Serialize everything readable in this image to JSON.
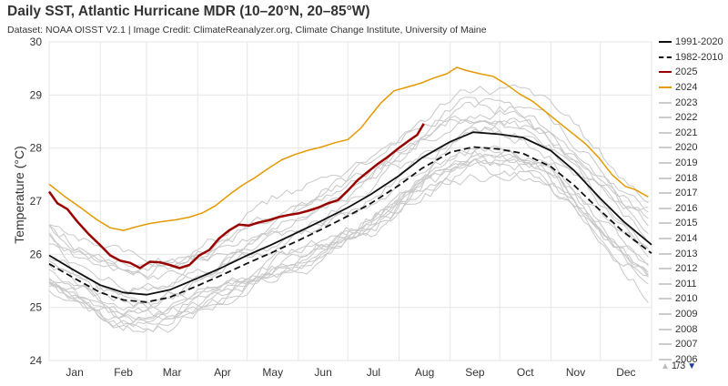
{
  "chart_data": {
    "type": "line",
    "title": "Daily SST, Atlantic Hurricane MDR (10–20°N, 20–85°W)",
    "subtitle": "Dataset: NOAA OISST V2.1 | Image Credit: ClimateReanalyzer.org, Climate Change Institute, University of Maine",
    "xlabel": "",
    "ylabel": "Temperature (°C)",
    "x_categories": [
      "Jan",
      "Feb",
      "Mar",
      "Apr",
      "May",
      "Jun",
      "Jul",
      "Aug",
      "Sep",
      "Oct",
      "Nov",
      "Dec"
    ],
    "x_unit": "day of year",
    "xlim": [
      1,
      366
    ],
    "ylim": [
      24,
      30
    ],
    "yticks": [
      24,
      25,
      26,
      27,
      28,
      29,
      30
    ],
    "grid": true,
    "legend_position": "right",
    "series": [
      {
        "name": "1991-2020",
        "color": "#111111",
        "style": "solid",
        "points": [
          [
            1,
            25.98
          ],
          [
            15,
            25.72
          ],
          [
            32,
            25.42
          ],
          [
            46,
            25.28
          ],
          [
            60,
            25.24
          ],
          [
            74,
            25.33
          ],
          [
            91,
            25.55
          ],
          [
            105,
            25.74
          ],
          [
            121,
            25.98
          ],
          [
            135,
            26.17
          ],
          [
            152,
            26.42
          ],
          [
            166,
            26.63
          ],
          [
            182,
            26.88
          ],
          [
            196,
            27.13
          ],
          [
            213,
            27.48
          ],
          [
            227,
            27.82
          ],
          [
            244,
            28.12
          ],
          [
            258,
            28.3
          ],
          [
            274,
            28.26
          ],
          [
            288,
            28.2
          ],
          [
            305,
            27.95
          ],
          [
            319,
            27.58
          ],
          [
            335,
            27.05
          ],
          [
            349,
            26.62
          ],
          [
            366,
            26.18
          ]
        ]
      },
      {
        "name": "1982-2010",
        "color": "#111111",
        "style": "dashed",
        "points": [
          [
            1,
            25.82
          ],
          [
            15,
            25.57
          ],
          [
            32,
            25.28
          ],
          [
            46,
            25.14
          ],
          [
            60,
            25.1
          ],
          [
            74,
            25.19
          ],
          [
            91,
            25.41
          ],
          [
            105,
            25.6
          ],
          [
            121,
            25.83
          ],
          [
            135,
            26.02
          ],
          [
            152,
            26.26
          ],
          [
            166,
            26.47
          ],
          [
            182,
            26.72
          ],
          [
            196,
            26.96
          ],
          [
            213,
            27.3
          ],
          [
            227,
            27.62
          ],
          [
            244,
            27.92
          ],
          [
            258,
            28.02
          ],
          [
            274,
            27.98
          ],
          [
            288,
            27.9
          ],
          [
            305,
            27.65
          ],
          [
            319,
            27.3
          ],
          [
            335,
            26.82
          ],
          [
            349,
            26.42
          ],
          [
            366,
            26.02
          ]
        ]
      },
      {
        "name": "2025",
        "color": "#990000",
        "style": "solid",
        "points": [
          [
            1,
            27.18
          ],
          [
            6,
            26.96
          ],
          [
            12,
            26.85
          ],
          [
            18,
            26.62
          ],
          [
            25,
            26.38
          ],
          [
            32,
            26.17
          ],
          [
            38,
            25.98
          ],
          [
            44,
            25.88
          ],
          [
            50,
            25.84
          ],
          [
            56,
            25.74
          ],
          [
            62,
            25.86
          ],
          [
            68,
            25.85
          ],
          [
            74,
            25.8
          ],
          [
            80,
            25.74
          ],
          [
            86,
            25.8
          ],
          [
            92,
            25.98
          ],
          [
            98,
            26.08
          ],
          [
            104,
            26.3
          ],
          [
            110,
            26.45
          ],
          [
            116,
            26.56
          ],
          [
            122,
            26.54
          ],
          [
            128,
            26.6
          ],
          [
            134,
            26.64
          ],
          [
            140,
            26.7
          ],
          [
            146,
            26.74
          ],
          [
            152,
            26.77
          ],
          [
            158,
            26.82
          ],
          [
            164,
            26.88
          ],
          [
            170,
            26.96
          ],
          [
            176,
            27.02
          ],
          [
            182,
            27.2
          ],
          [
            188,
            27.4
          ],
          [
            194,
            27.55
          ],
          [
            200,
            27.7
          ],
          [
            206,
            27.83
          ],
          [
            212,
            27.98
          ],
          [
            218,
            28.12
          ],
          [
            224,
            28.25
          ],
          [
            228,
            28.46
          ]
        ]
      },
      {
        "name": "2024",
        "color": "#e69900",
        "style": "solid",
        "points": [
          [
            1,
            27.32
          ],
          [
            10,
            27.1
          ],
          [
            20,
            26.88
          ],
          [
            30,
            26.65
          ],
          [
            38,
            26.5
          ],
          [
            46,
            26.45
          ],
          [
            54,
            26.52
          ],
          [
            62,
            26.58
          ],
          [
            70,
            26.62
          ],
          [
            78,
            26.65
          ],
          [
            86,
            26.7
          ],
          [
            94,
            26.78
          ],
          [
            102,
            26.92
          ],
          [
            110,
            27.12
          ],
          [
            118,
            27.3
          ],
          [
            126,
            27.45
          ],
          [
            134,
            27.62
          ],
          [
            142,
            27.78
          ],
          [
            150,
            27.88
          ],
          [
            158,
            27.96
          ],
          [
            166,
            28.02
          ],
          [
            174,
            28.1
          ],
          [
            182,
            28.16
          ],
          [
            190,
            28.38
          ],
          [
            196,
            28.62
          ],
          [
            202,
            28.85
          ],
          [
            210,
            29.08
          ],
          [
            218,
            29.15
          ],
          [
            226,
            29.22
          ],
          [
            234,
            29.32
          ],
          [
            242,
            29.4
          ],
          [
            248,
            29.52
          ],
          [
            254,
            29.46
          ],
          [
            262,
            29.4
          ],
          [
            270,
            29.35
          ],
          [
            278,
            29.2
          ],
          [
            286,
            29.02
          ],
          [
            294,
            28.88
          ],
          [
            302,
            28.68
          ],
          [
            310,
            28.48
          ],
          [
            318,
            28.28
          ],
          [
            326,
            28.08
          ],
          [
            334,
            27.82
          ],
          [
            342,
            27.5
          ],
          [
            350,
            27.28
          ],
          [
            356,
            27.22
          ],
          [
            364,
            27.08
          ]
        ]
      }
    ],
    "legend_entries_gray": [
      "2023",
      "2022",
      "2021",
      "2020",
      "2019",
      "2018",
      "2017",
      "2016",
      "2015",
      "2014",
      "2013",
      "2012",
      "2011",
      "2010",
      "2009",
      "2008",
      "2007",
      "2006"
    ]
  },
  "legend": {
    "items": [
      {
        "label": "1991-2020",
        "color": "#111111",
        "style": "solid"
      },
      {
        "label": "1982-2010",
        "color": "#111111",
        "style": "dashed"
      },
      {
        "label": "2025",
        "color": "#990000",
        "style": "solid"
      },
      {
        "label": "2024",
        "color": "#e69900",
        "style": "solid"
      },
      {
        "label": "2023",
        "color": "#cccccc",
        "style": "solid"
      },
      {
        "label": "2022",
        "color": "#cccccc",
        "style": "solid"
      },
      {
        "label": "2021",
        "color": "#cccccc",
        "style": "solid"
      },
      {
        "label": "2020",
        "color": "#cccccc",
        "style": "solid"
      },
      {
        "label": "2019",
        "color": "#cccccc",
        "style": "solid"
      },
      {
        "label": "2018",
        "color": "#cccccc",
        "style": "solid"
      },
      {
        "label": "2017",
        "color": "#cccccc",
        "style": "solid"
      },
      {
        "label": "2016",
        "color": "#cccccc",
        "style": "solid"
      },
      {
        "label": "2015",
        "color": "#cccccc",
        "style": "solid"
      },
      {
        "label": "2014",
        "color": "#cccccc",
        "style": "solid"
      },
      {
        "label": "2013",
        "color": "#cccccc",
        "style": "solid"
      },
      {
        "label": "2012",
        "color": "#cccccc",
        "style": "solid"
      },
      {
        "label": "2011",
        "color": "#cccccc",
        "style": "solid"
      },
      {
        "label": "2010",
        "color": "#cccccc",
        "style": "solid"
      },
      {
        "label": "2009",
        "color": "#cccccc",
        "style": "solid"
      },
      {
        "label": "2008",
        "color": "#cccccc",
        "style": "solid"
      },
      {
        "label": "2007",
        "color": "#cccccc",
        "style": "solid"
      },
      {
        "label": "2006",
        "color": "#cccccc",
        "style": "solid"
      }
    ],
    "pager": {
      "text": "1/3",
      "up_icon": "triangle-up-icon",
      "down_icon": "triangle-down-icon"
    }
  },
  "colors": {
    "grid": "#e6e6e6",
    "background_years": "#c8c8c8",
    "axis_text": "#333333"
  }
}
